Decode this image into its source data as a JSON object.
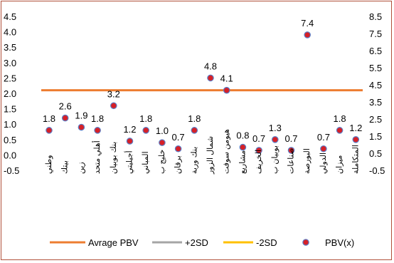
{
  "chart_data": {
    "type": "scatter",
    "categories": [
      "وطني",
      "بيتك",
      "زين",
      "أهلي متحد",
      "بنك بوبيان",
      "أجيليتي",
      "المباني",
      "خليج ب",
      "برقان",
      "بنك وربة",
      "شمال الزور",
      "هيومن سوفت",
      "مشاريع",
      "الخريف",
      "بوبيان ب",
      "صناعات",
      "البورصة",
      "الدولي",
      "ميزان",
      "المتكاملة"
    ],
    "series": [
      {
        "name": "PBV(x)",
        "values": [
          0.8,
          1.2,
          0.9,
          0.8,
          1.6,
          0.45,
          0.8,
          0.4,
          0.2,
          0.8,
          2.5,
          2.1,
          0.25,
          0.15,
          0.5,
          0.15,
          3.9,
          0.2,
          0.8,
          0.5
        ],
        "labels": [
          "1.8",
          "2.6",
          "1.9",
          "1.8",
          "3.2",
          "1.2",
          "1.8",
          "1.0",
          "0.7",
          "1.8",
          "4.8",
          "4.1",
          "0.8",
          "0.7",
          "1.3",
          "0.7",
          "7.4",
          "0.7",
          "1.8",
          "1.2"
        ],
        "color": "#d62027",
        "edge": "#5b7fc7"
      },
      {
        "name": "Avrage PBV",
        "value": 2.1,
        "color": "#ed7d31"
      }
    ],
    "legend": [
      "Avrage PBV",
      "+2SD",
      "-2SD",
      "PBV(x)"
    ],
    "legend_colors": [
      "#ed7d31",
      "#a5a5a5",
      "#ffc000",
      "#d62027"
    ],
    "legend_position": "bottom",
    "ylim_left": [
      -0.5,
      4.5
    ],
    "yticks_left": [
      "4.5",
      "4.0",
      "3.5",
      "3.0",
      "2.5",
      "2.0",
      "1.5",
      "1.0",
      "0.5",
      "0.0",
      "-0.5"
    ],
    "ylim_right": [
      -0.5,
      8.5
    ],
    "yticks_right": [
      "8.5",
      "7.5",
      "6.5",
      "5.5",
      "4.5",
      "3.5",
      "2.5",
      "1.5",
      "0.5",
      "-0.5"
    ],
    "grid": false
  }
}
